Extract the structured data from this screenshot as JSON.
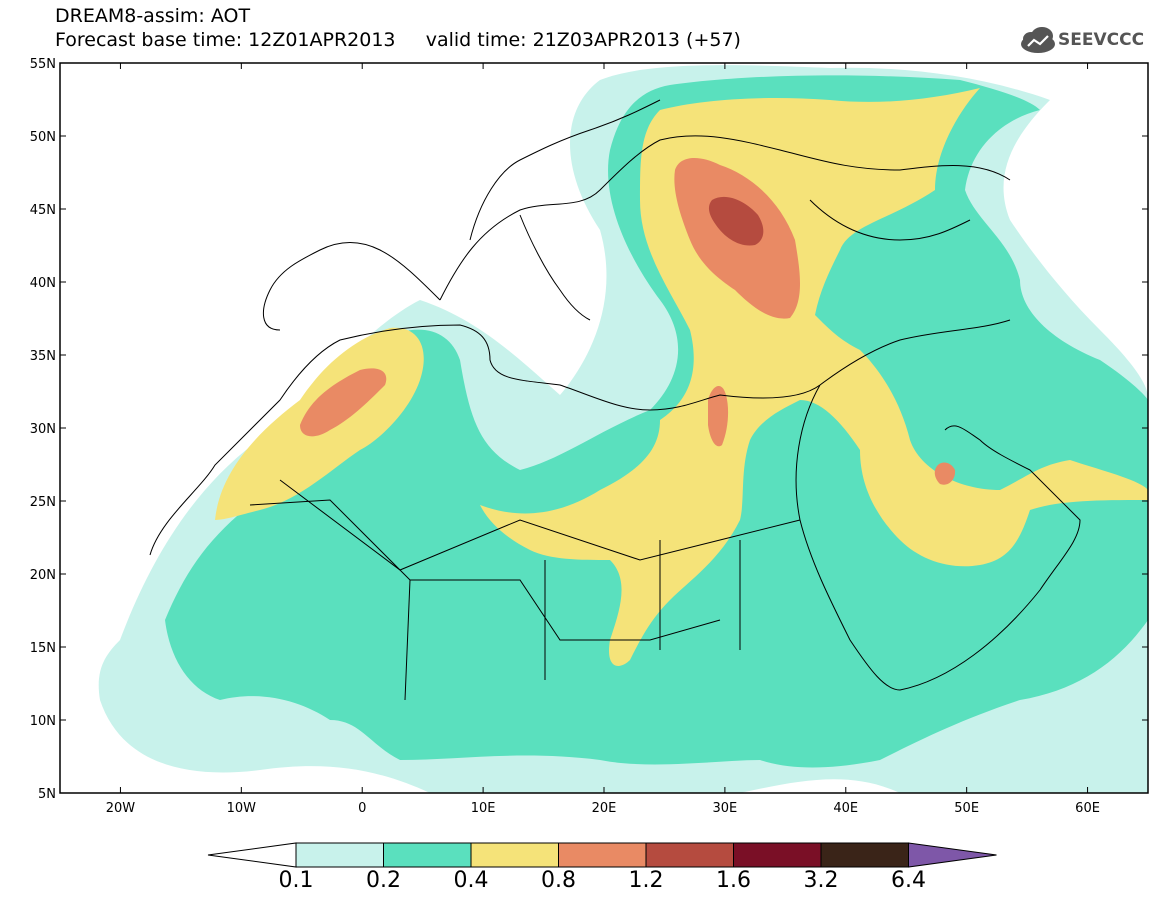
{
  "header": {
    "title_line1": "DREAM8-assim: AOT",
    "title_line2": "Forecast base time: 12Z01APR2013     valid time: 21Z03APR2013 (+57)",
    "logo_text": "SEEVCCC"
  },
  "map": {
    "lat_labels": [
      "55N",
      "50N",
      "45N",
      "40N",
      "35N",
      "30N",
      "25N",
      "20N",
      "15N",
      "10N",
      "5N"
    ],
    "lon_labels": [
      "20W",
      "10W",
      "0",
      "10E",
      "20E",
      "30E",
      "40E",
      "50E",
      "60E"
    ]
  },
  "colorbar": {
    "labels": [
      "0.1",
      "0.2",
      "0.4",
      "0.8",
      "1.2",
      "1.6",
      "3.2",
      "6.4"
    ],
    "colors": [
      "#c8f2eb",
      "#5ae0be",
      "#f5e379",
      "#e98a64",
      "#b54b3f",
      "#7a0f26",
      "#3a2418",
      "#7e57a8"
    ]
  }
}
